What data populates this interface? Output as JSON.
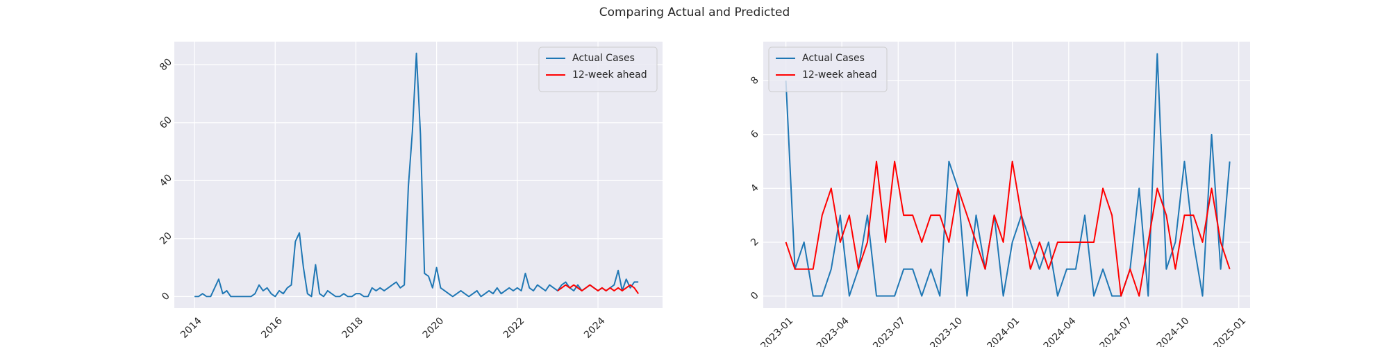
{
  "title": "Comparing Actual and Predicted",
  "chart_data": [
    {
      "type": "line",
      "legend": "upper right",
      "grid": true,
      "xlim": [
        2013.5,
        2025.6
      ],
      "xticks": [
        2014,
        2016,
        2018,
        2020,
        2022,
        2024
      ],
      "ylim": [
        -4,
        88
      ],
      "yticks": [
        0,
        20,
        40,
        60,
        80
      ],
      "series": [
        {
          "name": "Actual Cases",
          "color": "#1f77b4",
          "x": [
            2014,
            2014.1,
            2014.2,
            2014.3,
            2014.4,
            2014.5,
            2014.6,
            2014.7,
            2014.8,
            2014.9,
            2015,
            2015.1,
            2015.2,
            2015.3,
            2015.4,
            2015.5,
            2015.6,
            2015.7,
            2015.8,
            2015.9,
            2016,
            2016.1,
            2016.2,
            2016.3,
            2016.4,
            2016.5,
            2016.6,
            2016.7,
            2016.8,
            2016.9,
            2017,
            2017.1,
            2017.2,
            2017.3,
            2017.4,
            2017.5,
            2017.6,
            2017.7,
            2017.8,
            2017.9,
            2018,
            2018.1,
            2018.2,
            2018.3,
            2018.4,
            2018.5,
            2018.6,
            2018.7,
            2018.8,
            2018.9,
            2019,
            2019.1,
            2019.2,
            2019.3,
            2019.4,
            2019.5,
            2019.6,
            2019.7,
            2019.8,
            2019.9,
            2020,
            2020.1,
            2020.2,
            2020.3,
            2020.4,
            2020.5,
            2020.6,
            2020.7,
            2020.8,
            2020.9,
            2021,
            2021.1,
            2021.2,
            2021.3,
            2021.4,
            2021.5,
            2021.6,
            2021.7,
            2021.8,
            2021.9,
            2022,
            2022.1,
            2022.2,
            2022.3,
            2022.4,
            2022.5,
            2022.6,
            2022.7,
            2022.8,
            2022.9,
            2023,
            2023.1,
            2023.2,
            2023.3,
            2023.4,
            2023.5,
            2023.6,
            2023.7,
            2023.8,
            2023.9,
            2024,
            2024.1,
            2024.2,
            2024.3,
            2024.4,
            2024.5,
            2024.6,
            2024.7,
            2024.8,
            2024.9,
            2025
          ],
          "values": [
            0,
            0,
            1,
            0,
            0,
            3,
            6,
            1,
            2,
            0,
            0,
            0,
            0,
            0,
            0,
            1,
            4,
            2,
            3,
            1,
            0,
            2,
            1,
            3,
            4,
            19,
            22,
            10,
            1,
            0,
            11,
            1,
            0,
            2,
            1,
            0,
            0,
            1,
            0,
            0,
            1,
            1,
            0,
            0,
            3,
            2,
            3,
            2,
            3,
            4,
            5,
            3,
            4,
            38,
            57,
            84,
            56,
            8,
            7,
            3,
            10,
            3,
            2,
            1,
            0,
            1,
            2,
            1,
            0,
            1,
            2,
            0,
            1,
            2,
            1,
            3,
            1,
            2,
            3,
            2,
            3,
            2,
            8,
            3,
            2,
            4,
            3,
            2,
            4,
            3,
            2,
            4,
            5,
            3,
            2,
            4,
            2,
            3,
            4,
            3,
            2,
            3,
            2,
            3,
            4,
            9,
            2,
            6,
            3,
            5,
            5
          ]
        },
        {
          "name": "12-week ahead",
          "color": "#ff0000",
          "x": [
            2023,
            2023.1,
            2023.2,
            2023.3,
            2023.4,
            2023.5,
            2023.6,
            2023.7,
            2023.8,
            2023.9,
            2024,
            2024.1,
            2024.2,
            2024.3,
            2024.4,
            2024.5,
            2024.6,
            2024.7,
            2024.8,
            2024.9,
            2025
          ],
          "values": [
            2,
            3,
            4,
            3,
            4,
            3,
            2,
            3,
            4,
            3,
            2,
            3,
            2,
            3,
            2,
            3,
            2,
            3,
            4,
            3,
            1
          ]
        }
      ]
    },
    {
      "type": "line",
      "legend": "upper left",
      "grid": true,
      "xlim": [
        2022.9,
        2025.05
      ],
      "xticks": [
        {
          "value": 2023.0,
          "label": "2023-01"
        },
        {
          "value": 2023.247,
          "label": "2023-04"
        },
        {
          "value": 2023.496,
          "label": "2023-07"
        },
        {
          "value": 2023.748,
          "label": "2023-10"
        },
        {
          "value": 2024.0,
          "label": "2024-01"
        },
        {
          "value": 2024.249,
          "label": "2024-04"
        },
        {
          "value": 2024.497,
          "label": "2024-07"
        },
        {
          "value": 2024.749,
          "label": "2024-10"
        },
        {
          "value": 2025.0,
          "label": "2025-01"
        }
      ],
      "ylim": [
        -0.45,
        9.45
      ],
      "yticks": [
        0,
        2,
        4,
        6,
        8
      ],
      "x": [
        2023,
        2023.04,
        2023.08,
        2023.12,
        2023.16,
        2023.2,
        2023.24,
        2023.28,
        2023.32,
        2023.36,
        2023.4,
        2023.44,
        2023.48,
        2023.52,
        2023.56,
        2023.6,
        2023.64,
        2023.68,
        2023.72,
        2023.76,
        2023.8,
        2023.84,
        2023.88,
        2023.92,
        2023.96,
        2024,
        2024.04,
        2024.08,
        2024.12,
        2024.16,
        2024.2,
        2024.24,
        2024.28,
        2024.32,
        2024.36,
        2024.4,
        2024.44,
        2024.48,
        2024.52,
        2024.56,
        2024.6,
        2024.64,
        2024.68,
        2024.72,
        2024.76,
        2024.8,
        2024.84,
        2024.88,
        2024.92,
        2024.96
      ],
      "series": [
        {
          "name": "Actual Cases",
          "color": "#1f77b4",
          "values": [
            8,
            1,
            2,
            0,
            0,
            1,
            3,
            0,
            1,
            3,
            0,
            0,
            0,
            1,
            1,
            0,
            1,
            0,
            5,
            4,
            0,
            3,
            1,
            3,
            0,
            2,
            3,
            2,
            1,
            2,
            0,
            1,
            1,
            3,
            0,
            1,
            0,
            0,
            1,
            4,
            0,
            9,
            1,
            2,
            5,
            2,
            0,
            6,
            1,
            5
          ]
        },
        {
          "name": "12-week ahead",
          "color": "#ff0000",
          "values": [
            2,
            1,
            1,
            1,
            3,
            4,
            2,
            3,
            1,
            2,
            5,
            2,
            5,
            3,
            3,
            2,
            3,
            3,
            2,
            4,
            3,
            2,
            1,
            3,
            2,
            5,
            3,
            1,
            2,
            1,
            2,
            2,
            2,
            2,
            2,
            4,
            3,
            0,
            1,
            0,
            2,
            4,
            3,
            1,
            3,
            3,
            2,
            4,
            2,
            1
          ]
        }
      ]
    }
  ]
}
